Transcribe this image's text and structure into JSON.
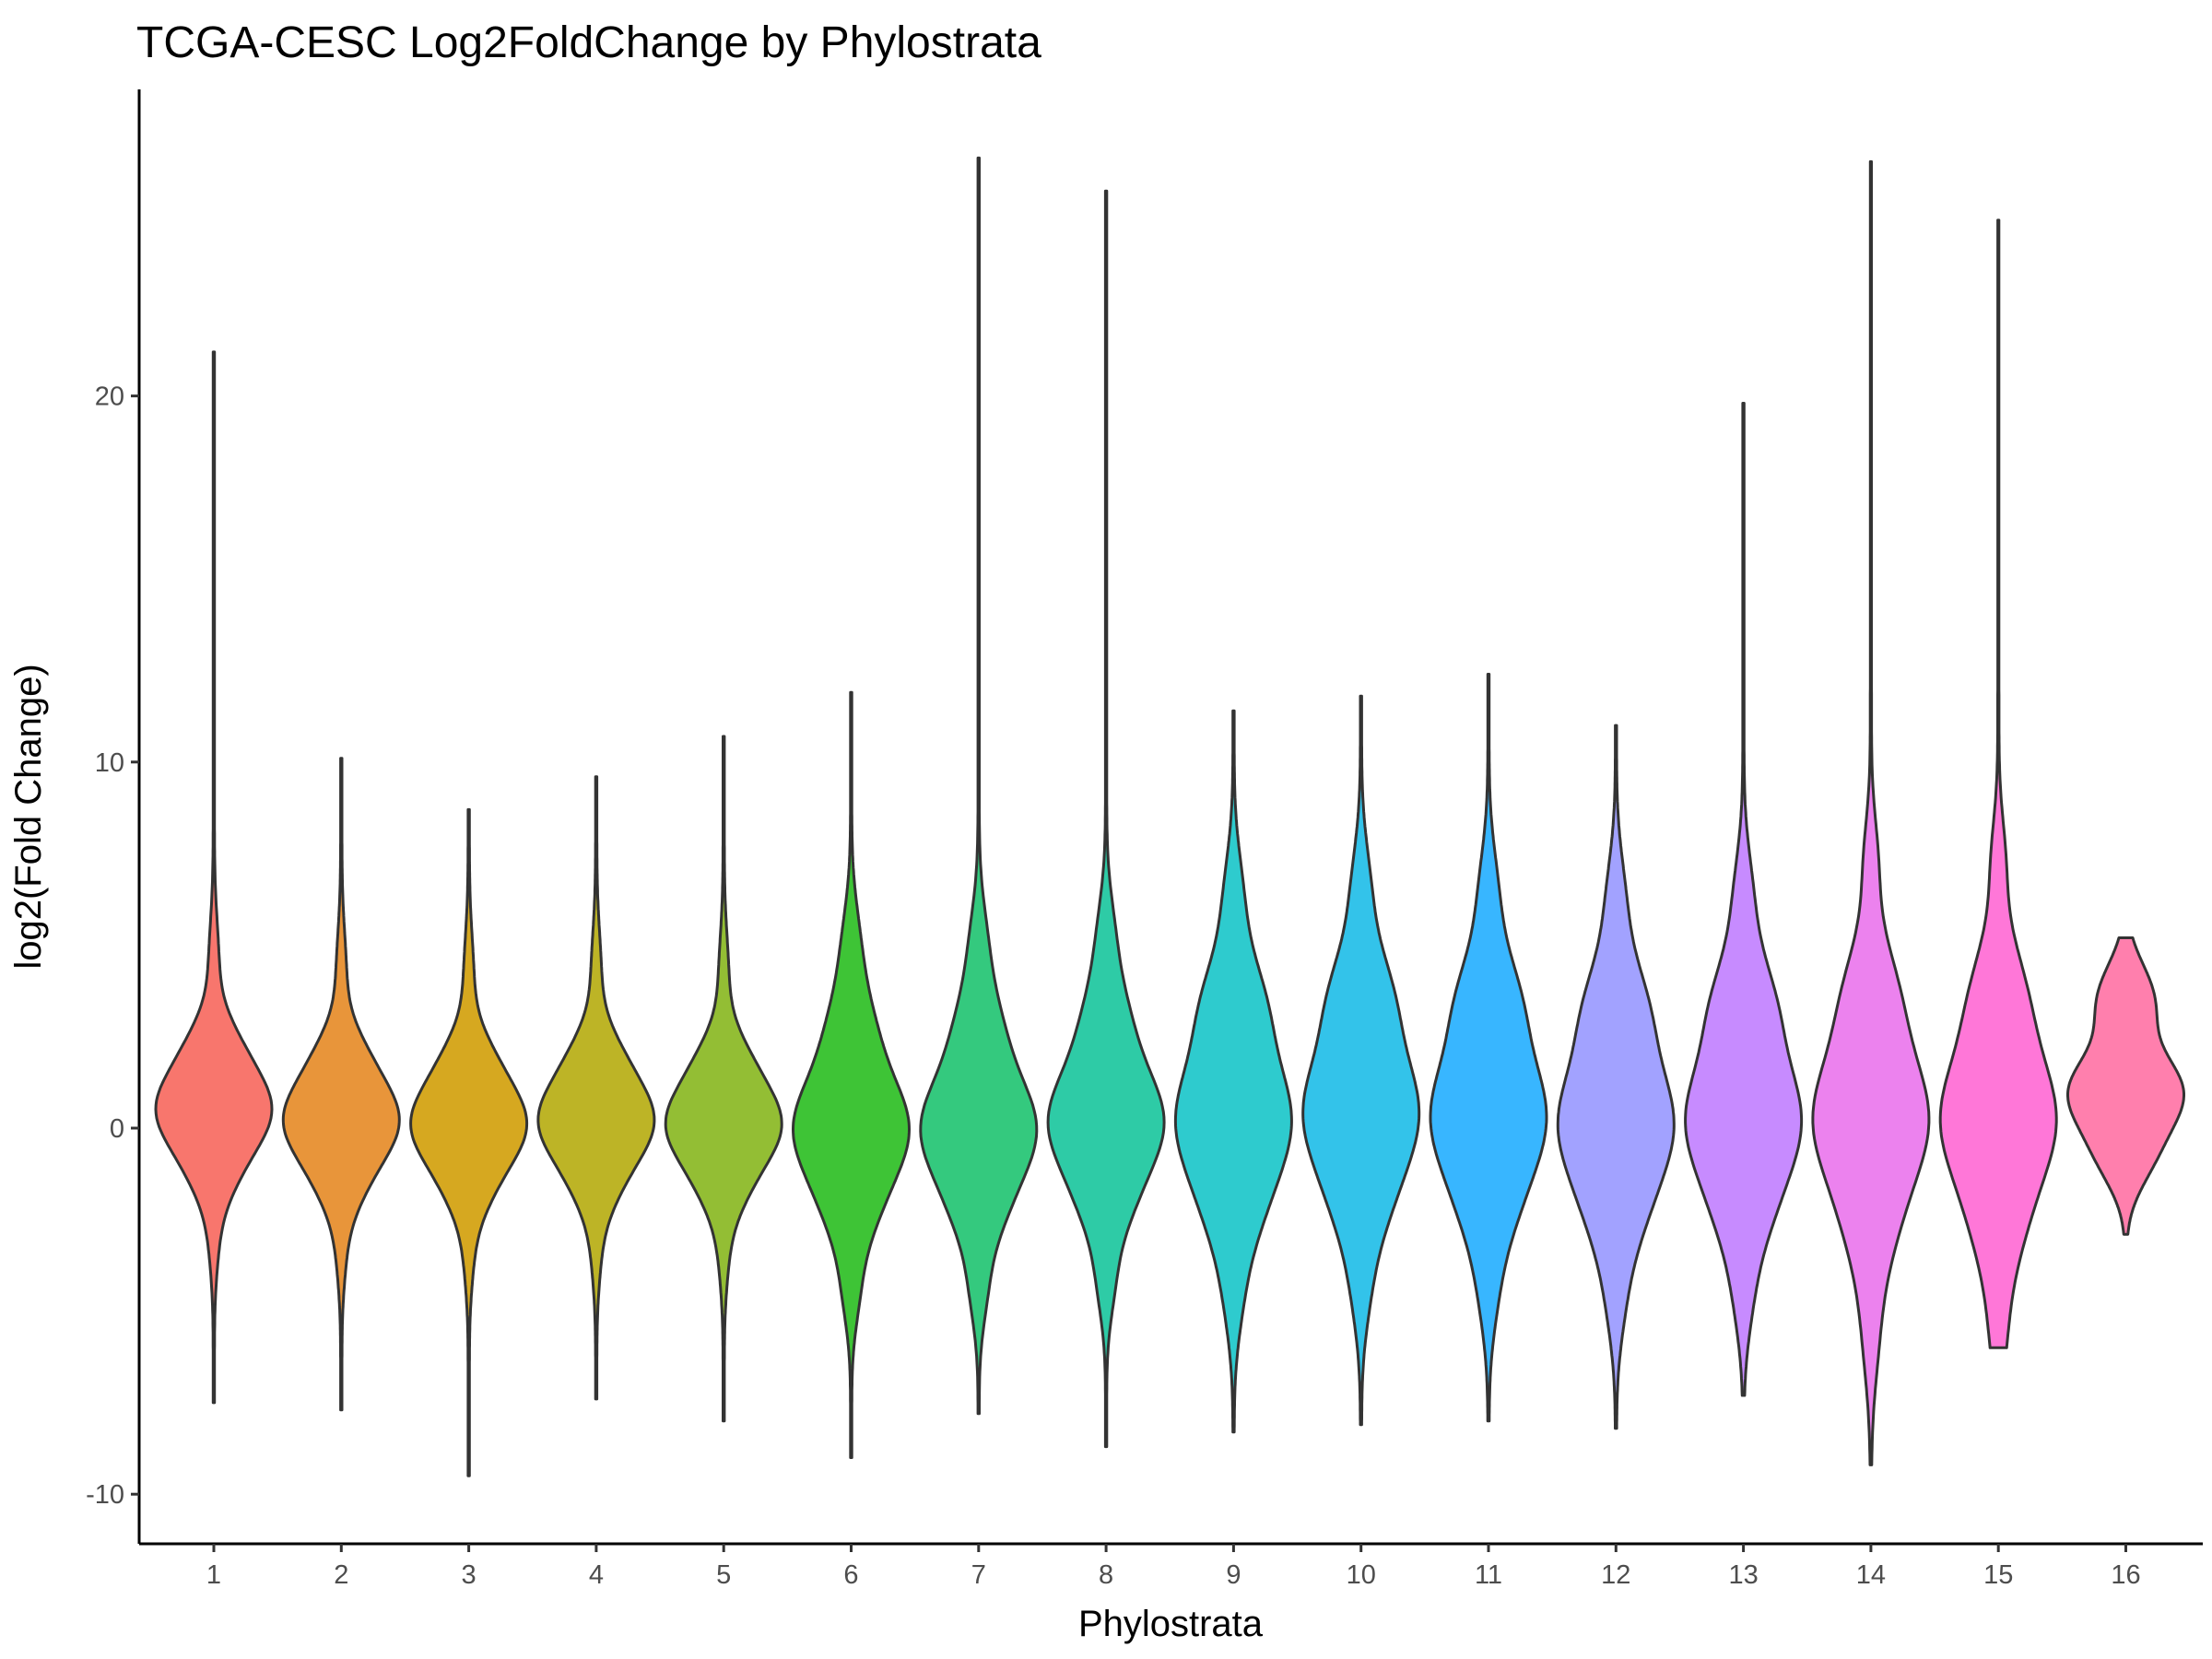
{
  "chart_data": {
    "type": "violin",
    "title": "TCGA-CESC Log2FoldChange by Phylostrata",
    "xlabel": "Phylostrata",
    "ylabel": "log2(Fold Change)",
    "ylim": [
      -11,
      28
    ],
    "yticks": [
      -10,
      0,
      10,
      20
    ],
    "ytick_labels": [
      "-10",
      "0",
      "10",
      "20"
    ],
    "grid": false,
    "legend": "none",
    "categories": [
      "1",
      "2",
      "3",
      "4",
      "5",
      "6",
      "7",
      "8",
      "9",
      "10",
      "11",
      "12",
      "13",
      "14",
      "15",
      "16"
    ],
    "colors": [
      "#F8766D",
      "#E8953A",
      "#D6A820",
      "#BDB426",
      "#93BE34",
      "#3EC436",
      "#34C97E",
      "#2ECBA6",
      "#2ECBCE",
      "#33C3EA",
      "#38B6FF",
      "#A2A2FF",
      "#C78BFF",
      "#EC82EE",
      "#FF77D8",
      "#FF7FAD"
    ],
    "series": [
      {
        "name": "1",
        "min": -7.5,
        "max": 21.2,
        "median": 0.5
      },
      {
        "name": "2",
        "min": -7.7,
        "max": 10.1,
        "median": 0.2
      },
      {
        "name": "3",
        "min": -9.5,
        "max": 8.7,
        "median": 0.1
      },
      {
        "name": "4",
        "min": -7.4,
        "max": 9.6,
        "median": 0.2
      },
      {
        "name": "5",
        "min": -8.0,
        "max": 10.7,
        "median": 0.1
      },
      {
        "name": "6",
        "min": -9.0,
        "max": 11.9,
        "median": 0.0
      },
      {
        "name": "7",
        "min": -7.8,
        "max": 26.5,
        "median": 0.0
      },
      {
        "name": "8",
        "min": -8.7,
        "max": 25.6,
        "median": 0.2
      },
      {
        "name": "9",
        "min": -8.3,
        "max": 11.4,
        "median": 0.3
      },
      {
        "name": "10",
        "min": -8.1,
        "max": 11.8,
        "median": 0.5
      },
      {
        "name": "11",
        "min": -8.0,
        "max": 12.4,
        "median": 0.4
      },
      {
        "name": "12",
        "min": -8.2,
        "max": 11.0,
        "median": 0.2
      },
      {
        "name": "13",
        "min": -7.3,
        "max": 19.8,
        "median": 0.3
      },
      {
        "name": "14",
        "min": -9.2,
        "max": 26.4,
        "median": 0.3
      },
      {
        "name": "15",
        "min": -6.0,
        "max": 24.8,
        "median": 0.3
      },
      {
        "name": "16",
        "min": -2.9,
        "max": 5.2,
        "median": 1.0
      }
    ]
  }
}
